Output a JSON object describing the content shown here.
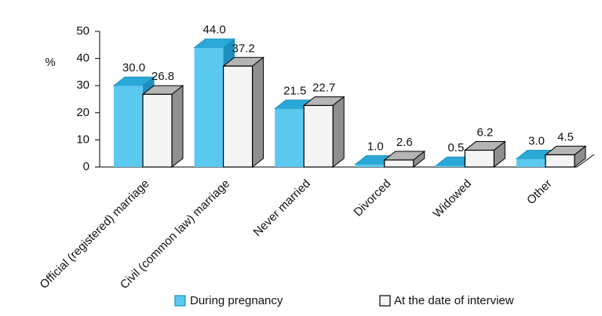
{
  "chart_data": {
    "type": "bar3d",
    "ylabel": "%",
    "categories": [
      "Official (registered) marriage",
      "Civil (common law) marriage",
      "Never married",
      "Divorced",
      "Widowed",
      "Other"
    ],
    "series": [
      {
        "name": "During pregnancy",
        "color": "#5bc8f0",
        "values": [
          30.0,
          44.0,
          21.5,
          1.0,
          0.5,
          3.0
        ],
        "value_labels": [
          "30.0",
          "44.0",
          "21.5",
          "1.0",
          "0.5",
          "3.0"
        ]
      },
      {
        "name": "At the date of interview",
        "color": "#f4f4f4",
        "values": [
          26.8,
          37.2,
          22.7,
          2.6,
          6.2,
          4.5
        ],
        "value_labels": [
          "26.8",
          "37.2",
          "22.7",
          "2.6",
          "6.2",
          "4.5"
        ]
      }
    ],
    "ylim": [
      0,
      50
    ],
    "yticks": [
      0,
      10,
      20,
      30,
      40,
      50
    ],
    "grid": false
  }
}
